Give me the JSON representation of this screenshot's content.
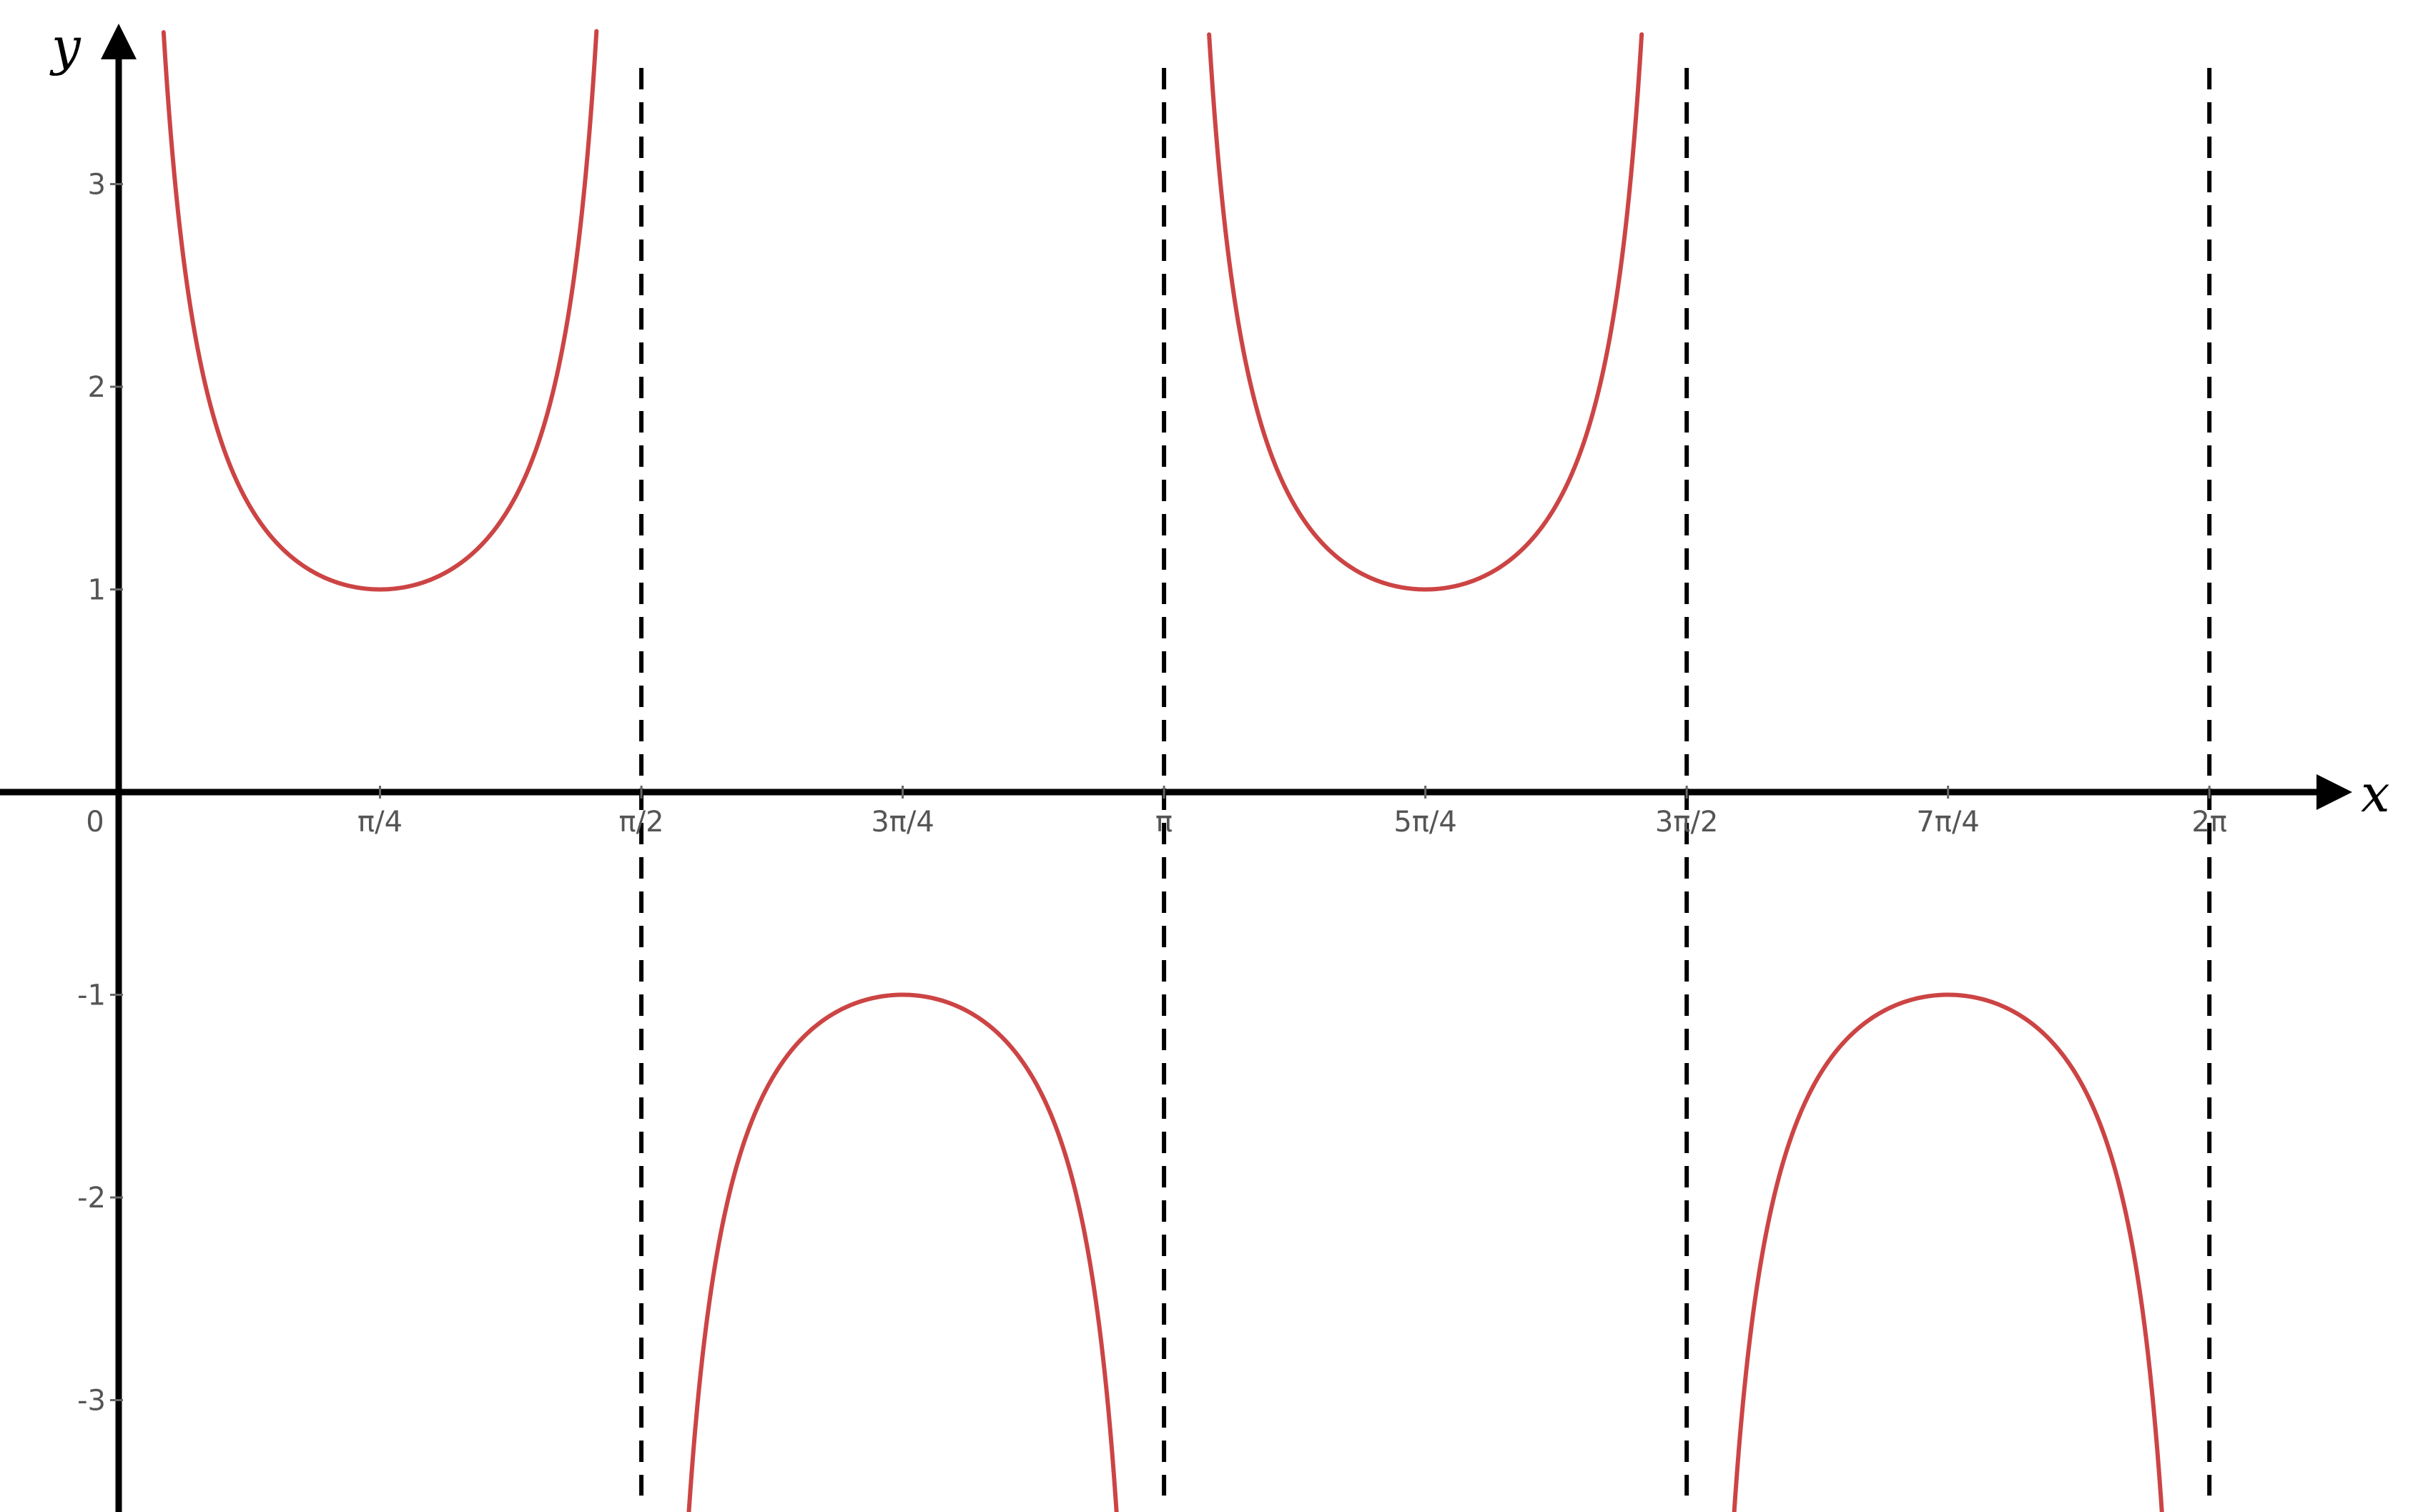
{
  "chart_data": {
    "type": "line",
    "title": "",
    "xlabel": "x",
    "ylabel": "y",
    "xlim": [
      -0.37,
      7.0
    ],
    "ylim": [
      -3.6,
      3.6
    ],
    "grid": false,
    "legend": "none",
    "x_ticks": [
      {
        "value": 0,
        "label": "0"
      },
      {
        "value": 0.7853981634,
        "label": "π/4"
      },
      {
        "value": 1.5707963268,
        "label": "π/2"
      },
      {
        "value": 2.3561944902,
        "label": "3π/4"
      },
      {
        "value": 3.1415926536,
        "label": "π"
      },
      {
        "value": 3.926990817,
        "label": "5π/4"
      },
      {
        "value": 4.7123889804,
        "label": "3π/2"
      },
      {
        "value": 5.4977871438,
        "label": "7π/4"
      },
      {
        "value": 6.2831853072,
        "label": "2π"
      }
    ],
    "y_ticks": [
      {
        "value": 3,
        "label": "3"
      },
      {
        "value": 2,
        "label": "2"
      },
      {
        "value": 1,
        "label": "1"
      },
      {
        "value": -1,
        "label": "-1"
      },
      {
        "value": -2,
        "label": "-2"
      },
      {
        "value": -3,
        "label": "-3"
      }
    ],
    "asymptotes": [
      1.5707963268,
      3.1415926536,
      4.7123889804,
      6.2831853072
    ],
    "series": [
      {
        "color": "#cc4444",
        "branches": [
          {
            "x_from": 0.135,
            "x_to": 1.436,
            "vertex": [
              0.7853981634,
              1
            ]
          },
          {
            "x_from": 1.706,
            "x_to": 3.007,
            "vertex": [
              2.3561944902,
              -1
            ]
          },
          {
            "x_from": 3.277,
            "x_to": 4.577,
            "vertex": [
              3.926990817,
              1
            ]
          },
          {
            "x_from": 4.848,
            "x_to": 6.148,
            "vertex": [
              5.4977871438,
              -1
            ]
          }
        ]
      }
    ],
    "colors": {
      "curve": "#cc4444",
      "axes": "#000000",
      "asymptote": "#000000",
      "tick_label": "#555555"
    }
  }
}
